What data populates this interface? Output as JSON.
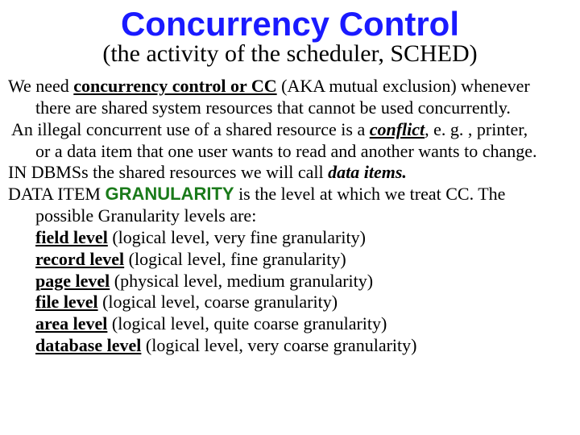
{
  "colors": {
    "title": "#1a1aff",
    "granularity_word": "#1a7a1a",
    "body_text": "#000000",
    "background": "#ffffff"
  },
  "typography": {
    "title_font": "Comic Sans MS",
    "title_fontsize_pt": 42,
    "title_weight": "bold",
    "subtitle_font": "Times New Roman",
    "subtitle_fontsize_pt": 30,
    "body_font": "Times New Roman",
    "body_fontsize_pt": 22
  },
  "title": "Concurrency Control",
  "subtitle": "(the activity of the scheduler, SCHED)",
  "para1": {
    "a": "We need ",
    "b": "concurrency control or CC",
    "c": " (AKA mutual exclusion) whenever",
    "d": "there are shared system resources that cannot be used concurrently."
  },
  "para2": {
    "a": " An illegal concurrent use of a shared resource is a ",
    "b": "conflict",
    "c": ", e. g. , printer,",
    "d": "or a data item that one user wants to read and another wants to change."
  },
  "para3": {
    "a": "IN DBMSs the shared resources we will call ",
    "b": "data items."
  },
  "para4": {
    "a": "DATA ITEM ",
    "b": "GRANULARITY",
    "c": " is the level at which we treat CC.  The",
    "d": "possible Granularity levels are:"
  },
  "levels": [
    {
      "name": "field level",
      "desc": " (logical level, very fine granularity)"
    },
    {
      "name": "record level",
      "desc": " (logical level, fine granularity)"
    },
    {
      "name": "page level",
      "desc": " (physical level, medium granularity)"
    },
    {
      "name": "file level",
      "desc": " (logical level, coarse granularity)"
    },
    {
      "name": "area level",
      "desc": " (logical level, quite coarse granularity)"
    },
    {
      "name": "database level",
      "desc": " (logical level, very coarse granularity)"
    }
  ]
}
